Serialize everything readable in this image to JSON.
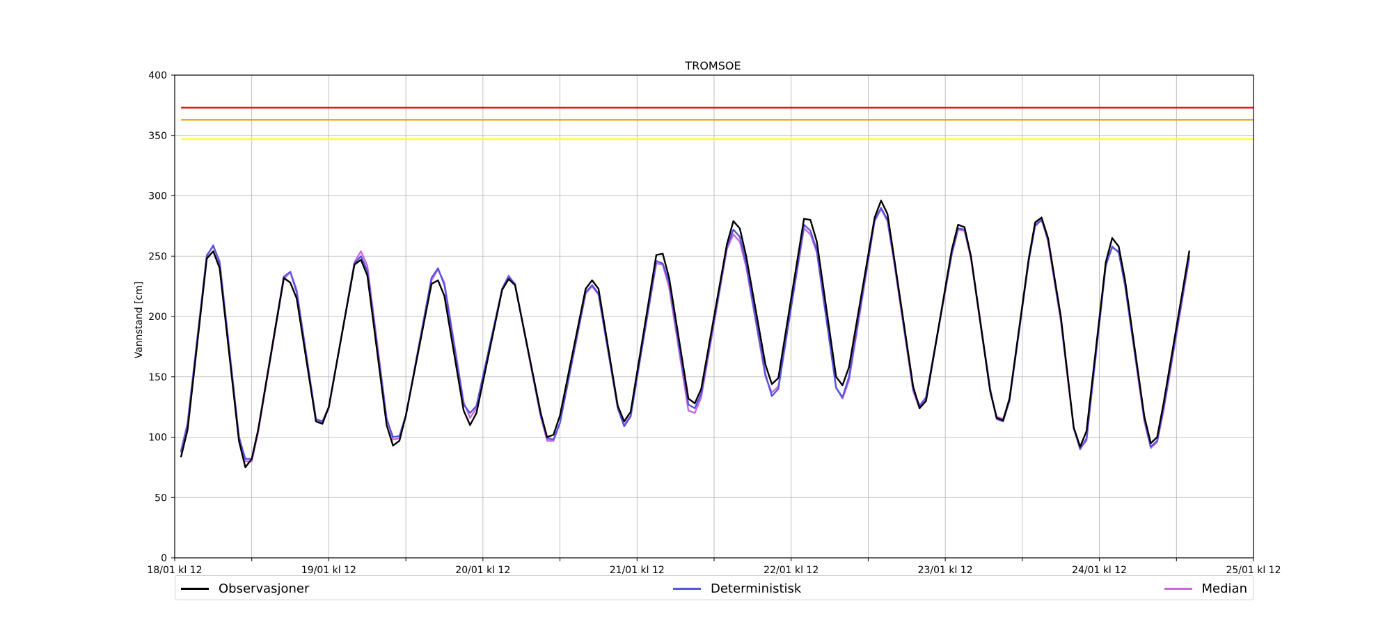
{
  "chart_data": {
    "type": "line",
    "title": "TROMSOE",
    "ylabel": "Vannstand [cm]",
    "xlabel": "",
    "ylim": [
      0,
      400
    ],
    "yticks": [
      0,
      50,
      100,
      150,
      200,
      250,
      300,
      350,
      400
    ],
    "xlim_hours": [
      0,
      168
    ],
    "x_unit": "hours after 18/01 kl 12",
    "xticks": [
      {
        "hours": 0,
        "label": "18/01 kl 12"
      },
      {
        "hours": 12,
        "label": ""
      },
      {
        "hours": 24,
        "label": "19/01 kl 12"
      },
      {
        "hours": 36,
        "label": ""
      },
      {
        "hours": 48,
        "label": "20/01 kl 12"
      },
      {
        "hours": 60,
        "label": ""
      },
      {
        "hours": 72,
        "label": "21/01 kl 12"
      },
      {
        "hours": 84,
        "label": ""
      },
      {
        "hours": 96,
        "label": "22/01 kl 12"
      },
      {
        "hours": 108,
        "label": ""
      },
      {
        "hours": 120,
        "label": "23/01 kl 12"
      },
      {
        "hours": 132,
        "label": ""
      },
      {
        "hours": 144,
        "label": "24/01 kl 12"
      },
      {
        "hours": 156,
        "label": ""
      },
      {
        "hours": 168,
        "label": "25/01 kl 12"
      }
    ],
    "grid": true,
    "legend_position": "bottom",
    "threshold_lines": [
      {
        "value": 373,
        "color": "#e8191b"
      },
      {
        "value": 363,
        "color": "#f5a623"
      },
      {
        "value": 347,
        "color": "#ffff33"
      }
    ],
    "series": [
      {
        "name": "Observasjoner",
        "color": "#000000",
        "points": [
          [
            1,
            84
          ],
          [
            2,
            106
          ],
          [
            5,
            248
          ],
          [
            6,
            254
          ],
          [
            7,
            240
          ],
          [
            10,
            97
          ],
          [
            11,
            75
          ],
          [
            12,
            82
          ],
          [
            13,
            106
          ],
          [
            17,
            232
          ],
          [
            18,
            228
          ],
          [
            19,
            215
          ],
          [
            22,
            113
          ],
          [
            23,
            111
          ],
          [
            24,
            125
          ],
          [
            28,
            243
          ],
          [
            29,
            247
          ],
          [
            30,
            234
          ],
          [
            33,
            110
          ],
          [
            34,
            93
          ],
          [
            35,
            97
          ],
          [
            36,
            118
          ],
          [
            40,
            227
          ],
          [
            41,
            230
          ],
          [
            42,
            217
          ],
          [
            45,
            122
          ],
          [
            46,
            110
          ],
          [
            47,
            120
          ],
          [
            51,
            222
          ],
          [
            52,
            231
          ],
          [
            53,
            226
          ],
          [
            57,
            120
          ],
          [
            58,
            100
          ],
          [
            59,
            102
          ],
          [
            60,
            118
          ],
          [
            64,
            223
          ],
          [
            65,
            230
          ],
          [
            66,
            223
          ],
          [
            69,
            126
          ],
          [
            70,
            113
          ],
          [
            71,
            121
          ],
          [
            75,
            251
          ],
          [
            76,
            252
          ],
          [
            77,
            232
          ],
          [
            80,
            132
          ],
          [
            81,
            128
          ],
          [
            82,
            140
          ],
          [
            86,
            260
          ],
          [
            87,
            279
          ],
          [
            88,
            273
          ],
          [
            89,
            250
          ],
          [
            92,
            160
          ],
          [
            93,
            144
          ],
          [
            94,
            149
          ],
          [
            98,
            281
          ],
          [
            99,
            280
          ],
          [
            100,
            262
          ],
          [
            103,
            150
          ],
          [
            104,
            143
          ],
          [
            105,
            158
          ],
          [
            109,
            282
          ],
          [
            110,
            296
          ],
          [
            111,
            285
          ],
          [
            112,
            250
          ],
          [
            115,
            142
          ],
          [
            116,
            124
          ],
          [
            117,
            130
          ],
          [
            121,
            255
          ],
          [
            122,
            276
          ],
          [
            123,
            274
          ],
          [
            124,
            250
          ],
          [
            127,
            138
          ],
          [
            128,
            116
          ],
          [
            129,
            114
          ],
          [
            130,
            132
          ],
          [
            133,
            248
          ],
          [
            134,
            278
          ],
          [
            135,
            282
          ],
          [
            136,
            265
          ],
          [
            138,
            200
          ],
          [
            140,
            108
          ],
          [
            141,
            92
          ],
          [
            142,
            105
          ],
          [
            145,
            245
          ],
          [
            146,
            265
          ],
          [
            147,
            258
          ],
          [
            148,
            230
          ],
          [
            151,
            117
          ],
          [
            152,
            95
          ],
          [
            153,
            100
          ],
          [
            154,
            128
          ],
          [
            158,
            254
          ]
        ]
      },
      {
        "name": "Deterministisk",
        "color": "#5555dd",
        "points": [
          [
            1,
            88
          ],
          [
            2,
            110
          ],
          [
            5,
            250
          ],
          [
            6,
            259
          ],
          [
            7,
            244
          ],
          [
            10,
            100
          ],
          [
            11,
            82
          ],
          [
            12,
            82
          ],
          [
            13,
            106
          ],
          [
            17,
            233
          ],
          [
            18,
            237
          ],
          [
            19,
            220
          ],
          [
            22,
            115
          ],
          [
            23,
            113
          ],
          [
            24,
            125
          ],
          [
            28,
            244
          ],
          [
            29,
            250
          ],
          [
            30,
            238
          ],
          [
            33,
            115
          ],
          [
            34,
            100
          ],
          [
            35,
            101
          ],
          [
            36,
            118
          ],
          [
            40,
            232
          ],
          [
            41,
            240
          ],
          [
            42,
            226
          ],
          [
            45,
            127
          ],
          [
            46,
            120
          ],
          [
            47,
            126
          ],
          [
            51,
            223
          ],
          [
            52,
            233
          ],
          [
            53,
            227
          ],
          [
            57,
            118
          ],
          [
            58,
            99
          ],
          [
            59,
            98
          ],
          [
            60,
            112
          ],
          [
            64,
            220
          ],
          [
            65,
            226
          ],
          [
            66,
            219
          ],
          [
            69,
            124
          ],
          [
            70,
            109
          ],
          [
            71,
            117
          ],
          [
            75,
            246
          ],
          [
            76,
            244
          ],
          [
            77,
            228
          ],
          [
            80,
            127
          ],
          [
            81,
            124
          ],
          [
            82,
            136
          ],
          [
            86,
            258
          ],
          [
            87,
            272
          ],
          [
            88,
            266
          ],
          [
            89,
            244
          ],
          [
            92,
            152
          ],
          [
            93,
            134
          ],
          [
            94,
            140
          ],
          [
            98,
            276
          ],
          [
            99,
            271
          ],
          [
            100,
            255
          ],
          [
            103,
            141
          ],
          [
            104,
            133
          ],
          [
            105,
            150
          ],
          [
            109,
            280
          ],
          [
            110,
            290
          ],
          [
            111,
            280
          ],
          [
            112,
            248
          ],
          [
            115,
            140
          ],
          [
            116,
            126
          ],
          [
            117,
            133
          ],
          [
            121,
            252
          ],
          [
            122,
            273
          ],
          [
            123,
            272
          ],
          [
            124,
            250
          ],
          [
            127,
            140
          ],
          [
            128,
            115
          ],
          [
            129,
            113
          ],
          [
            130,
            130
          ],
          [
            133,
            246
          ],
          [
            134,
            275
          ],
          [
            135,
            280
          ],
          [
            136,
            264
          ],
          [
            138,
            198
          ],
          [
            140,
            108
          ],
          [
            141,
            90
          ],
          [
            142,
            99
          ],
          [
            145,
            242
          ],
          [
            146,
            258
          ],
          [
            147,
            253
          ],
          [
            148,
            226
          ],
          [
            151,
            115
          ],
          [
            152,
            92
          ],
          [
            153,
            97
          ],
          [
            154,
            124
          ],
          [
            158,
            250
          ]
        ]
      },
      {
        "name": "Median",
        "color": "#cc66dd",
        "points": [
          [
            1,
            89
          ],
          [
            2,
            112
          ],
          [
            5,
            251
          ],
          [
            6,
            258
          ],
          [
            7,
            246
          ],
          [
            10,
            101
          ],
          [
            11,
            80
          ],
          [
            12,
            80
          ],
          [
            13,
            104
          ],
          [
            17,
            231
          ],
          [
            18,
            237
          ],
          [
            19,
            222
          ],
          [
            22,
            115
          ],
          [
            23,
            112
          ],
          [
            24,
            124
          ],
          [
            28,
            245
          ],
          [
            29,
            254
          ],
          [
            30,
            242
          ],
          [
            33,
            116
          ],
          [
            34,
            98
          ],
          [
            35,
            99
          ],
          [
            36,
            117
          ],
          [
            40,
            230
          ],
          [
            41,
            239
          ],
          [
            42,
            228
          ],
          [
            45,
            129
          ],
          [
            46,
            116
          ],
          [
            47,
            124
          ],
          [
            51,
            223
          ],
          [
            52,
            234
          ],
          [
            53,
            226
          ],
          [
            57,
            117
          ],
          [
            58,
            97
          ],
          [
            59,
            97
          ],
          [
            60,
            112
          ],
          [
            64,
            219
          ],
          [
            65,
            225
          ],
          [
            66,
            218
          ],
          [
            69,
            124
          ],
          [
            70,
            110
          ],
          [
            71,
            118
          ],
          [
            75,
            244
          ],
          [
            76,
            243
          ],
          [
            77,
            224
          ],
          [
            80,
            122
          ],
          [
            81,
            120
          ],
          [
            82,
            133
          ],
          [
            86,
            256
          ],
          [
            87,
            268
          ],
          [
            88,
            262
          ],
          [
            89,
            241
          ],
          [
            92,
            150
          ],
          [
            93,
            137
          ],
          [
            94,
            142
          ],
          [
            98,
            273
          ],
          [
            99,
            268
          ],
          [
            100,
            253
          ],
          [
            103,
            141
          ],
          [
            104,
            132
          ],
          [
            105,
            147
          ],
          [
            109,
            279
          ],
          [
            110,
            289
          ],
          [
            111,
            279
          ],
          [
            112,
            246
          ],
          [
            115,
            138
          ],
          [
            116,
            124
          ],
          [
            117,
            131
          ],
          [
            121,
            251
          ],
          [
            122,
            272
          ],
          [
            123,
            271
          ],
          [
            124,
            248
          ],
          [
            127,
            138
          ],
          [
            128,
            117
          ],
          [
            129,
            115
          ],
          [
            130,
            130
          ],
          [
            133,
            247
          ],
          [
            134,
            276
          ],
          [
            135,
            281
          ],
          [
            136,
            262
          ],
          [
            138,
            196
          ],
          [
            140,
            107
          ],
          [
            141,
            91
          ],
          [
            142,
            97
          ],
          [
            145,
            244
          ],
          [
            146,
            257
          ],
          [
            147,
            254
          ],
          [
            148,
            225
          ],
          [
            151,
            113
          ],
          [
            152,
            91
          ],
          [
            153,
            96
          ],
          [
            154,
            122
          ],
          [
            158,
            248
          ]
        ]
      }
    ]
  }
}
